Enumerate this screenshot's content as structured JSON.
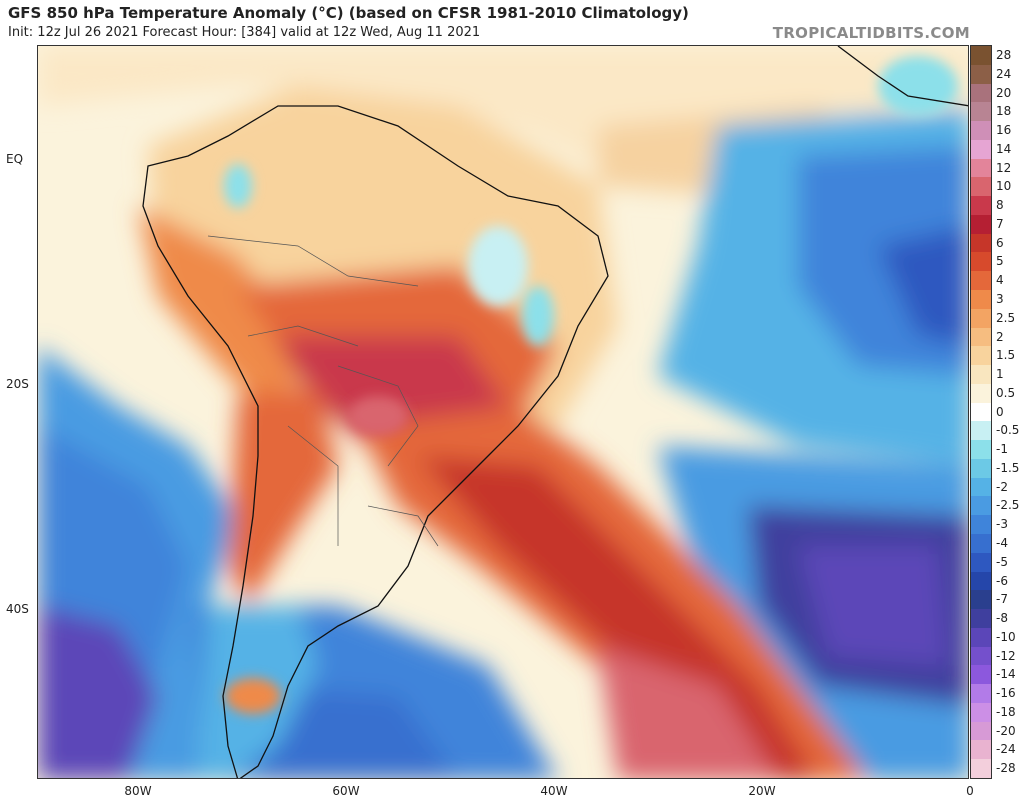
{
  "header": {
    "title": "GFS 850 hPa Temperature Anomaly (°C) (based on CFSR 1981-2010 Climatology)",
    "subtitle": "Init: 12z Jul 26 2021   Forecast Hour: [384]   valid at 12z Wed, Aug 11 2021",
    "watermark": "TROPICALTIDBITS.COM"
  },
  "map": {
    "lat_labels": [
      "EQ",
      "20S",
      "40S"
    ],
    "lon_labels": [
      "80W",
      "60W",
      "40W",
      "20W",
      "0"
    ]
  },
  "legend": {
    "levels": [
      "28",
      "24",
      "20",
      "18",
      "16",
      "14",
      "12",
      "10",
      "8",
      "7",
      "6",
      "5",
      "4",
      "3",
      "2.5",
      "2",
      "1.5",
      "1",
      "0.5",
      "0",
      "-0.5",
      "-1",
      "-1.5",
      "-2",
      "-2.5",
      "-3",
      "-4",
      "-5",
      "-6",
      "-7",
      "-8",
      "-10",
      "-12",
      "-14",
      "-16",
      "-18",
      "-20",
      "-24",
      "-28"
    ],
    "colors": [
      "#7a5230",
      "#8c5f47",
      "#a9727c",
      "#b88493",
      "#cf8fb7",
      "#e6a5d3",
      "#e3849a",
      "#d9656e",
      "#c9394b",
      "#b51f33",
      "#c63629",
      "#d74a2c",
      "#e4683a",
      "#ef8a4a",
      "#f3a463",
      "#f6bd80",
      "#f8d39d",
      "#f9e6bf",
      "#fbf3dc",
      "#ffffff",
      "#c8f0f3",
      "#8ce0ea",
      "#6cc9e6",
      "#55b2e6",
      "#4a9be2",
      "#3f84da",
      "#376fcf",
      "#2e58c0",
      "#2546aa",
      "#2a3f8e",
      "#3f3f9e",
      "#5b46b8",
      "#7450cc",
      "#8c58dd",
      "#b27be8",
      "#cc8fe6",
      "#d79ad6",
      "#e9b3d0",
      "#f3cfdc"
    ]
  }
}
